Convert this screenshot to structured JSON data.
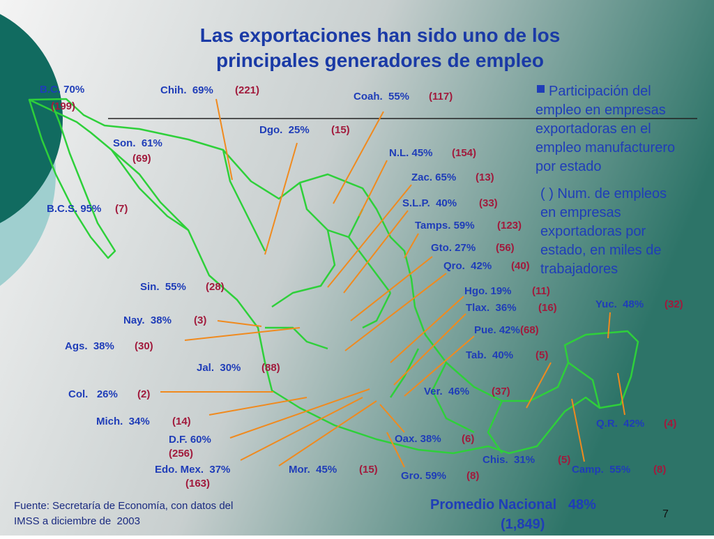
{
  "title": [
    "Las exportaciones han sido uno de los",
    "principales generadores de empleo"
  ],
  "legend": {
    "participation": [
      "Participación del",
      "empleo en empresas",
      "exportadoras en el",
      "empleo manufacturero",
      "por estado"
    ],
    "jobs": [
      "( ) Num. de empleos",
      "en empresas",
      "exportadoras por",
      "estado, en miles de",
      "trabajadores"
    ]
  },
  "states": [
    {
      "label": "B.C. 70%",
      "count": "(199)"
    },
    {
      "label": "Chih.  69%",
      "count": "(221)"
    },
    {
      "label": "Coah.  55%",
      "count": "(117)"
    },
    {
      "label": "Dgo.  25%",
      "count": "(15)"
    },
    {
      "label": "Son.  61%",
      "count": "(69)"
    },
    {
      "label": "N.L. 45%",
      "count": "(154)"
    },
    {
      "label": "Zac. 65%",
      "count": "(13)"
    },
    {
      "label": "S.L.P.  40%",
      "count": "(33)"
    },
    {
      "label": "B.C.S. 95%",
      "count": "(7)"
    },
    {
      "label": "Tamps. 59%",
      "count": "(123)"
    },
    {
      "label": "Gto. 27%",
      "count": "(56)"
    },
    {
      "label": "Qro.  42%",
      "count": "(40)"
    },
    {
      "label": "Sin.  55%",
      "count": "(28)"
    },
    {
      "label": "Hgo. 19%",
      "count": "(11)"
    },
    {
      "label": "Tlax.  36%",
      "count": "(16)"
    },
    {
      "label": "Yuc.  48%",
      "count": "(32)"
    },
    {
      "label": "Nay.  38%",
      "count": "(3)"
    },
    {
      "label": "Pue. 42%",
      "count": "(68)"
    },
    {
      "label": "Ags.  38%",
      "count": "(30)"
    },
    {
      "label": "Tab.  40%",
      "count": "(5)"
    },
    {
      "label": "Jal.  30%",
      "count": "(88)"
    },
    {
      "label": "Col.   26%",
      "count": "(2)"
    },
    {
      "label": "Ver.  46%",
      "count": "(37)"
    },
    {
      "label": "Mich.  34%",
      "count": "(14)"
    },
    {
      "label": "Q.R.  42%",
      "count": "(4)"
    },
    {
      "label": "D.F. 60%",
      "count": "(256)"
    },
    {
      "label": "Oax. 38%",
      "count": "(6)"
    },
    {
      "label": "Chis.  31%",
      "count": "(5)"
    },
    {
      "label": "Edo. Mex.  37%",
      "count": "(163)"
    },
    {
      "label": "Mor.  45%",
      "count": "(15)"
    },
    {
      "label": "Camp.  55%",
      "count": "(8)"
    },
    {
      "label": "Gro. 59%",
      "count": "(8)"
    }
  ],
  "national": {
    "label": "Promedio Nacional   48%",
    "count": "(1,849)"
  },
  "source": [
    "Fuente: Secretaría de Economía, con datos del",
    "IMSS a diciembre de  2003"
  ],
  "page_number": "7"
}
